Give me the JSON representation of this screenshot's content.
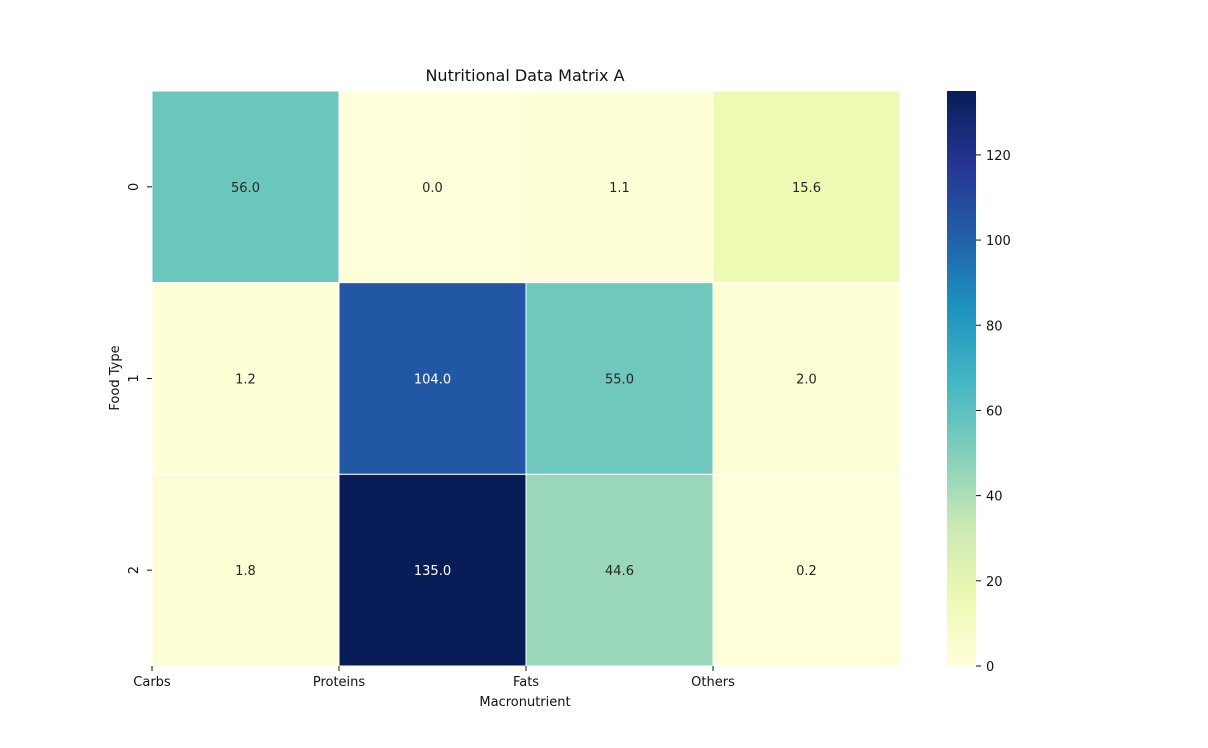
{
  "chart_data": {
    "type": "heatmap",
    "title": "Nutritional Data Matrix A",
    "xlabel": "Macronutrient",
    "ylabel": "Food Type",
    "x_categories": [
      "Carbs",
      "Proteins",
      "Fats",
      "Others"
    ],
    "y_categories": [
      "0",
      "1",
      "2"
    ],
    "values": [
      [
        56.0,
        0.0,
        1.1,
        15.6
      ],
      [
        1.2,
        104.0,
        55.0,
        2.0
      ],
      [
        1.8,
        135.0,
        44.6,
        0.2
      ]
    ],
    "value_labels": [
      [
        "56.0",
        "0.0",
        "1.1",
        "15.6"
      ],
      [
        "1.2",
        "104.0",
        "55.0",
        "2.0"
      ],
      [
        "1.8",
        "135.0",
        "44.6",
        "0.2"
      ]
    ],
    "colorbar": {
      "min": 0,
      "max": 135,
      "ticks": [
        0,
        20,
        40,
        60,
        80,
        100,
        120
      ],
      "colormap": "YlGnBu",
      "stops": [
        "#ffffd9",
        "#edf8b1",
        "#c7e9b4",
        "#7fcdbb",
        "#41b6c4",
        "#1d91c0",
        "#225ea8",
        "#253494",
        "#081d58"
      ]
    },
    "grid": false,
    "legend": "colorbar-right"
  }
}
